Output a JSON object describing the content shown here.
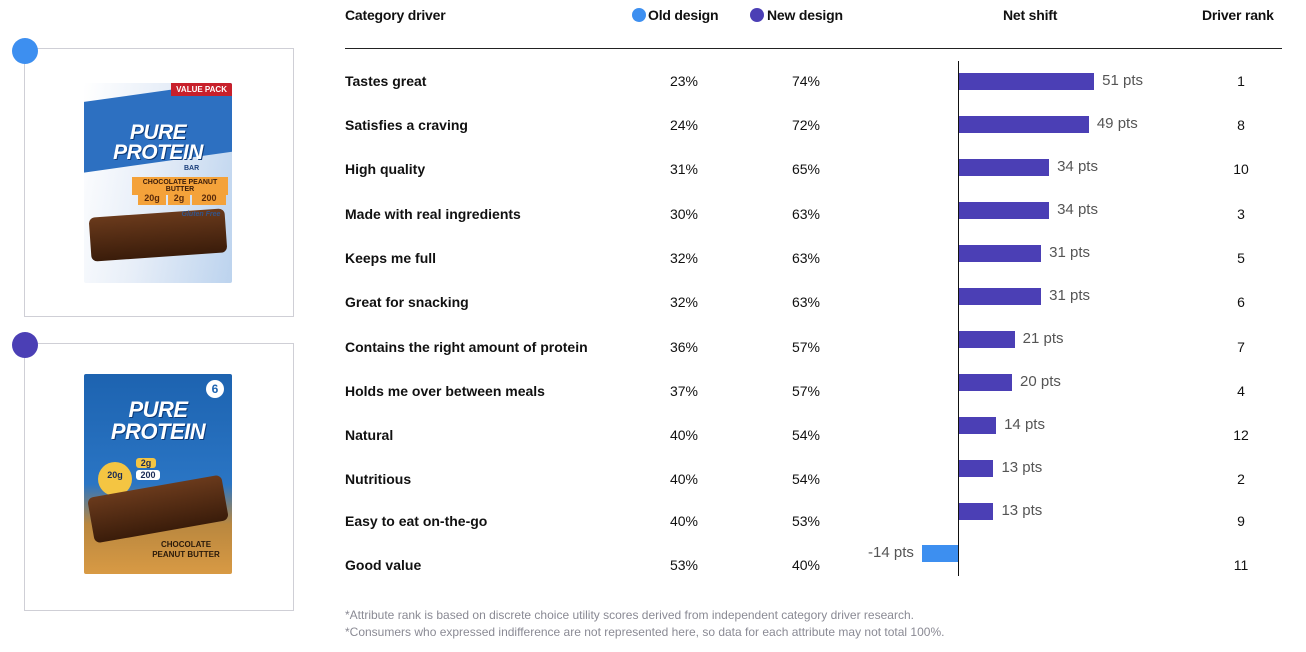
{
  "colors": {
    "old": "#3d8ff0",
    "new": "#4b3fb5"
  },
  "header": {
    "driver": "Category driver",
    "old": "Old design",
    "new": "New design",
    "shift": "Net shift",
    "rank": "Driver rank"
  },
  "products": {
    "old": {
      "tag": "VALUE PACK",
      "brand_line1": "PURE",
      "brand_line2": "PROTEIN",
      "sub": "BAR",
      "flavor": "CHOCOLATE PEANUT BUTTER",
      "stat1": "20g",
      "stat2": "2g",
      "stat3": "200",
      "gluten": "Gluten Free"
    },
    "new": {
      "count": "6",
      "brand_line1": "PURE",
      "brand_line2": "PROTEIN",
      "stat1": "20g",
      "stat2": "2g",
      "stat3": "200",
      "flavor_line1": "CHOCOLATE",
      "flavor_line2": "PEANUT BUTTER"
    }
  },
  "chart_data": {
    "type": "bar",
    "orientation": "horizontal",
    "title": "",
    "categories": [
      "Tastes great",
      "Satisfies a craving",
      "High quality",
      "Made with real ingredients",
      "Keeps me full",
      "Great for snacking",
      "Contains the right amount of protein",
      "Holds me over between meals",
      "Natural",
      "Nutritious",
      "Easy to eat on-the-go",
      "Good value"
    ],
    "old_design": [
      "23%",
      "24%",
      "31%",
      "30%",
      "32%",
      "32%",
      "36%",
      "37%",
      "40%",
      "40%",
      "40%",
      "53%"
    ],
    "new_design": [
      "74%",
      "72%",
      "65%",
      "63%",
      "63%",
      "63%",
      "57%",
      "57%",
      "54%",
      "54%",
      "53%",
      "40%"
    ],
    "net_shift": [
      51,
      49,
      34,
      34,
      31,
      31,
      21,
      20,
      14,
      13,
      13,
      -14
    ],
    "net_shift_labels": [
      "51 pts",
      "49 pts",
      "34 pts",
      "34 pts",
      "31 pts",
      "31 pts",
      "21 pts",
      "20 pts",
      "14 pts",
      "13 pts",
      "13 pts",
      "-14 pts"
    ],
    "driver_rank": [
      "1",
      "8",
      "10",
      "3",
      "5",
      "6",
      "7",
      "4",
      "12",
      "2",
      "9",
      "11"
    ],
    "unit": "pts"
  },
  "footnotes": [
    "*Attribute rank is based on discrete choice utility scores derived from independent category driver research.",
    "*Consumers who expressed indifference are not represented here, so data for each attribute may not total 100%."
  ]
}
